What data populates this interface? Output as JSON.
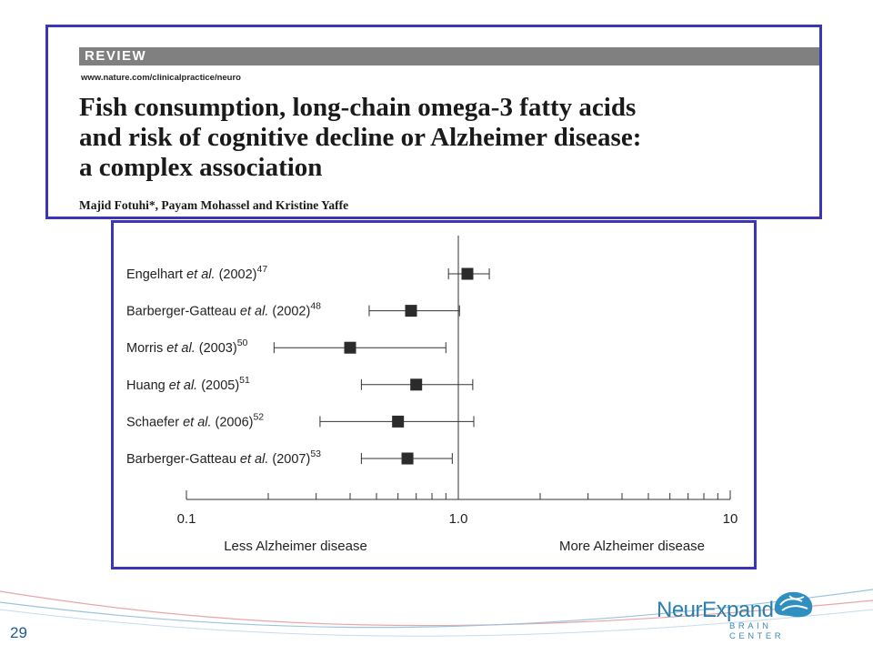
{
  "header": {
    "review_label": "REVIEW",
    "journal_url": "www.nature.com/clinicalpractice/neuro",
    "title_lines": [
      "Fish consumption, long-chain omega-3 fatty acids",
      "and risk of cognitive decline or Alzheimer disease:",
      "a complex association"
    ],
    "authors": "Majid Fotuhi*, Payam Mohassel and Kristine Yaffe"
  },
  "chart_data": {
    "type": "forest",
    "xscale": "log",
    "xlim": [
      0.1,
      10
    ],
    "ticks": [
      {
        "value": 0.1,
        "label": "0.1"
      },
      {
        "value": 1.0,
        "label": "1.0"
      },
      {
        "value": 10,
        "label": "10"
      }
    ],
    "reference_line": 1.0,
    "xlabel_left": "Less Alzheimer disease",
    "xlabel_right": "More Alzheimer disease",
    "studies": [
      {
        "author": "Engelhart",
        "etal": " et al.",
        "year": " (2002)",
        "ref": "47",
        "estimate": 1.08,
        "lower": 0.92,
        "upper": 1.3
      },
      {
        "author": "Barberger-Gatteau",
        "etal": " et al.",
        "year": " (2002)",
        "ref": "48",
        "estimate": 0.67,
        "lower": 0.47,
        "upper": 1.01
      },
      {
        "author": "Morris",
        "etal": " et al.",
        "year": " (2003)",
        "ref": "50",
        "estimate": 0.4,
        "lower": 0.21,
        "upper": 0.9
      },
      {
        "author": "Huang",
        "etal": " et al.",
        "year": " (2005)",
        "ref": "51",
        "estimate": 0.7,
        "lower": 0.44,
        "upper": 1.13
      },
      {
        "author": "Schaefer",
        "etal": " et al.",
        "year": " (2006)",
        "ref": "52",
        "estimate": 0.6,
        "lower": 0.31,
        "upper": 1.14
      },
      {
        "author": "Barberger-Gatteau",
        "etal": " et al.",
        "year": " (2007)",
        "ref": "53",
        "estimate": 0.65,
        "lower": 0.44,
        "upper": 0.95
      }
    ]
  },
  "footer": {
    "slide_number": "29",
    "logo_name": "NeurExpand",
    "logo_tagline": "BRAIN CENTER",
    "colors": {
      "frame": "#3a36b5",
      "logo": "#2a7fb0"
    }
  }
}
